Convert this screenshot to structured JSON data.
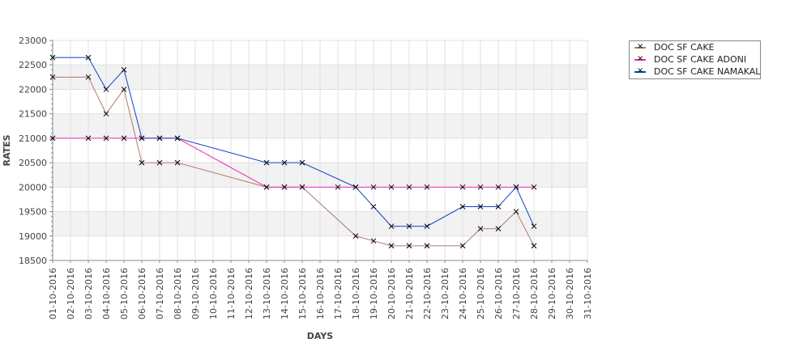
{
  "chart_data": {
    "type": "line",
    "title": "",
    "xlabel": "DAYS",
    "ylabel": "RATES",
    "ylim": [
      18500,
      23000
    ],
    "ytick_step": 500,
    "grid": true,
    "legend_position": "right",
    "categories": [
      "01-10-2016",
      "02-10-2016",
      "03-10-2016",
      "04-10-2016",
      "05-10-2016",
      "06-10-2016",
      "07-10-2016",
      "08-10-2016",
      "09-10-2016",
      "10-10-2016",
      "11-10-2016",
      "12-10-2016",
      "13-10-2016",
      "14-10-2016",
      "15-10-2016",
      "16-10-2016",
      "17-10-2016",
      "18-10-2016",
      "19-10-2016",
      "20-10-2016",
      "21-10-2016",
      "22-10-2016",
      "23-10-2016",
      "24-10-2016",
      "25-10-2016",
      "26-10-2016",
      "27-10-2016",
      "28-10-2016",
      "29-10-2016",
      "30-10-2016",
      "31-10-2016"
    ],
    "yticks": [
      "18500",
      "19000",
      "19500",
      "20000",
      "20500",
      "21000",
      "21500",
      "22000",
      "22500",
      "23000"
    ],
    "series": [
      {
        "name": "DOC SF CAKE",
        "color": "#b07a68",
        "points": [
          [
            1,
            22250
          ],
          [
            3,
            22250
          ],
          [
            4,
            21500
          ],
          [
            5,
            22000
          ],
          [
            6,
            20500
          ],
          [
            7,
            20500
          ],
          [
            8,
            20500
          ],
          [
            13,
            20000
          ],
          [
            14,
            20000
          ],
          [
            15,
            20000
          ],
          [
            18,
            19000
          ],
          [
            19,
            18900
          ],
          [
            20,
            18800
          ],
          [
            21,
            18800
          ],
          [
            22,
            18800
          ],
          [
            24,
            18800
          ],
          [
            25,
            19150
          ],
          [
            26,
            19150
          ],
          [
            27,
            19500
          ],
          [
            28,
            18800
          ]
        ]
      },
      {
        "name": "DOC SF CAKE ADONI",
        "color": "#e832b4",
        "points": [
          [
            1,
            21000
          ],
          [
            3,
            21000
          ],
          [
            4,
            21000
          ],
          [
            5,
            21000
          ],
          [
            6,
            21000
          ],
          [
            7,
            21000
          ],
          [
            8,
            21000
          ],
          [
            13,
            20000
          ],
          [
            14,
            20000
          ],
          [
            15,
            20000
          ],
          [
            17,
            20000
          ],
          [
            18,
            20000
          ],
          [
            19,
            20000
          ],
          [
            20,
            20000
          ],
          [
            21,
            20000
          ],
          [
            22,
            20000
          ],
          [
            24,
            20000
          ],
          [
            25,
            20000
          ],
          [
            26,
            20000
          ],
          [
            27,
            20000
          ],
          [
            28,
            20000
          ]
        ]
      },
      {
        "name": "DOC SF CAKE NAMAKAL",
        "color": "#1040c8",
        "points": [
          [
            1,
            22650
          ],
          [
            3,
            22650
          ],
          [
            4,
            22000
          ],
          [
            5,
            22400
          ],
          [
            6,
            21000
          ],
          [
            7,
            21000
          ],
          [
            8,
            21000
          ],
          [
            13,
            20500
          ],
          [
            14,
            20500
          ],
          [
            15,
            20500
          ],
          [
            18,
            20000
          ],
          [
            19,
            19600
          ],
          [
            20,
            19200
          ],
          [
            21,
            19200
          ],
          [
            22,
            19200
          ],
          [
            24,
            19600
          ],
          [
            25,
            19600
          ],
          [
            26,
            19600
          ],
          [
            27,
            20000
          ],
          [
            28,
            19200
          ]
        ]
      }
    ]
  }
}
